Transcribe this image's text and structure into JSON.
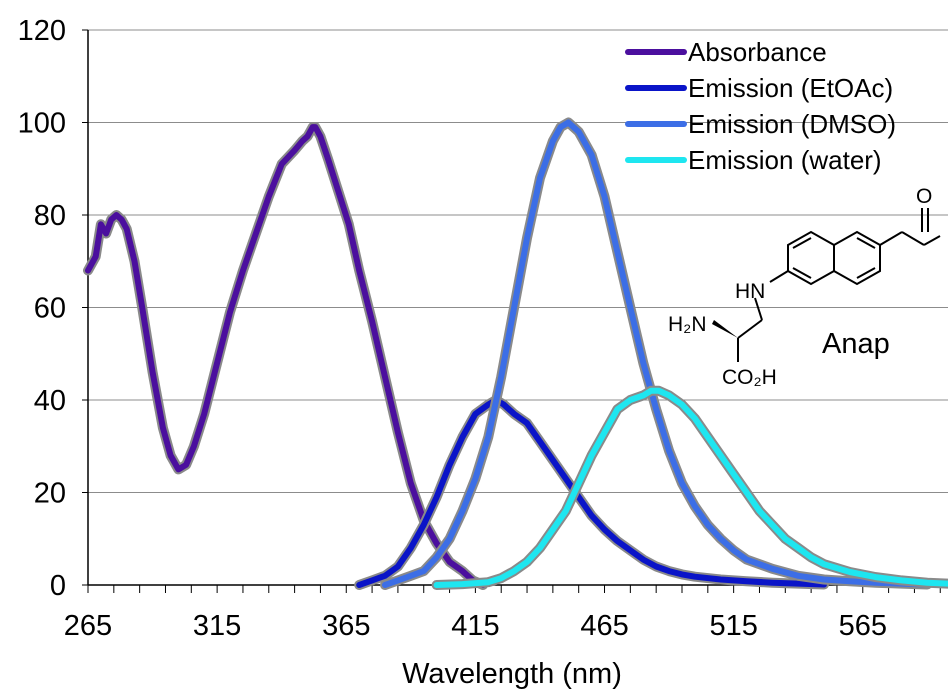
{
  "chart_data": {
    "type": "line",
    "title": "",
    "xlabel": "Wavelength (nm)",
    "ylabel": "",
    "xlim": [
      265,
      598
    ],
    "ylim": [
      0,
      120
    ],
    "x_ticks": [
      265,
      315,
      365,
      415,
      465,
      515,
      565
    ],
    "y_ticks": [
      0,
      20,
      40,
      60,
      80,
      100,
      120
    ],
    "grid": "horizontal",
    "legend_position": "top-right",
    "series": [
      {
        "name": "Absorbance",
        "color": "#4b0f9e",
        "points": [
          [
            265,
            68
          ],
          [
            268,
            71
          ],
          [
            270,
            78
          ],
          [
            272,
            76
          ],
          [
            274,
            79
          ],
          [
            276,
            80
          ],
          [
            278,
            79
          ],
          [
            280,
            77
          ],
          [
            283,
            70
          ],
          [
            286,
            60
          ],
          [
            290,
            46
          ],
          [
            294,
            34
          ],
          [
            297,
            28
          ],
          [
            300,
            25
          ],
          [
            303,
            26
          ],
          [
            306,
            30
          ],
          [
            310,
            37
          ],
          [
            315,
            48
          ],
          [
            320,
            59
          ],
          [
            325,
            68
          ],
          [
            330,
            76
          ],
          [
            335,
            84
          ],
          [
            340,
            91
          ],
          [
            345,
            94
          ],
          [
            348,
            96
          ],
          [
            350,
            97
          ],
          [
            352,
            99
          ],
          [
            353,
            99
          ],
          [
            355,
            97
          ],
          [
            358,
            92
          ],
          [
            362,
            85
          ],
          [
            366,
            78
          ],
          [
            370,
            68
          ],
          [
            375,
            57
          ],
          [
            380,
            45
          ],
          [
            385,
            33
          ],
          [
            390,
            22
          ],
          [
            395,
            14
          ],
          [
            400,
            9
          ],
          [
            405,
            5
          ],
          [
            410,
            3
          ],
          [
            414,
            1
          ],
          [
            418,
            0
          ]
        ]
      },
      {
        "name": "Emission (EtOAc)",
        "color": "#0a14c8",
        "points": [
          [
            370,
            0
          ],
          [
            375,
            1
          ],
          [
            380,
            2
          ],
          [
            385,
            4
          ],
          [
            390,
            8
          ],
          [
            395,
            13
          ],
          [
            400,
            19
          ],
          [
            405,
            26
          ],
          [
            410,
            32
          ],
          [
            415,
            37
          ],
          [
            420,
            39
          ],
          [
            423,
            40
          ],
          [
            426,
            39
          ],
          [
            430,
            37
          ],
          [
            435,
            35
          ],
          [
            440,
            31
          ],
          [
            445,
            27
          ],
          [
            450,
            23
          ],
          [
            455,
            19
          ],
          [
            460,
            15
          ],
          [
            465,
            12
          ],
          [
            470,
            9.5
          ],
          [
            475,
            7.5
          ],
          [
            480,
            5.5
          ],
          [
            485,
            4
          ],
          [
            490,
            3
          ],
          [
            495,
            2.3
          ],
          [
            500,
            1.8
          ],
          [
            510,
            1.2
          ],
          [
            520,
            0.8
          ],
          [
            530,
            0.5
          ],
          [
            540,
            0.3
          ],
          [
            550,
            0.1
          ]
        ]
      },
      {
        "name": "Emission (DMSO)",
        "color": "#3c6ee6",
        "points": [
          [
            380,
            0
          ],
          [
            385,
            1
          ],
          [
            390,
            2
          ],
          [
            395,
            3
          ],
          [
            400,
            6
          ],
          [
            405,
            10
          ],
          [
            410,
            16
          ],
          [
            415,
            23
          ],
          [
            420,
            32
          ],
          [
            425,
            45
          ],
          [
            430,
            60
          ],
          [
            435,
            75
          ],
          [
            440,
            88
          ],
          [
            445,
            96
          ],
          [
            448,
            99
          ],
          [
            451,
            100
          ],
          [
            455,
            98
          ],
          [
            460,
            93
          ],
          [
            465,
            84
          ],
          [
            470,
            72
          ],
          [
            475,
            60
          ],
          [
            480,
            48
          ],
          [
            485,
            38
          ],
          [
            490,
            29
          ],
          [
            495,
            22
          ],
          [
            500,
            17
          ],
          [
            505,
            13
          ],
          [
            510,
            10
          ],
          [
            515,
            7.5
          ],
          [
            520,
            5.5
          ],
          [
            530,
            3.5
          ],
          [
            540,
            2
          ],
          [
            550,
            1.2
          ],
          [
            560,
            0.8
          ],
          [
            570,
            0.5
          ],
          [
            580,
            0.3
          ],
          [
            590,
            0.1
          ]
        ]
      },
      {
        "name": "Emission (water)",
        "color": "#1ee6f0",
        "points": [
          [
            400,
            0
          ],
          [
            410,
            0.2
          ],
          [
            420,
            0.6
          ],
          [
            425,
            1.5
          ],
          [
            430,
            3
          ],
          [
            435,
            5
          ],
          [
            440,
            8
          ],
          [
            445,
            12
          ],
          [
            450,
            16
          ],
          [
            455,
            22
          ],
          [
            460,
            28
          ],
          [
            465,
            33
          ],
          [
            470,
            38
          ],
          [
            475,
            40
          ],
          [
            480,
            41
          ],
          [
            483,
            42
          ],
          [
            486,
            42
          ],
          [
            490,
            41
          ],
          [
            495,
            39
          ],
          [
            500,
            36
          ],
          [
            505,
            32
          ],
          [
            510,
            28
          ],
          [
            515,
            24
          ],
          [
            520,
            20
          ],
          [
            525,
            16
          ],
          [
            530,
            13
          ],
          [
            535,
            10
          ],
          [
            540,
            8
          ],
          [
            545,
            6
          ],
          [
            550,
            4.5
          ],
          [
            560,
            2.8
          ],
          [
            570,
            1.7
          ],
          [
            580,
            1
          ],
          [
            590,
            0.5
          ],
          [
            598,
            0.3
          ]
        ]
      }
    ]
  },
  "molecule": {
    "name": "Anap",
    "labels": {
      "hn": "HN",
      "h2n": "H₂N",
      "co2h": "CO₂H",
      "o": "O"
    }
  }
}
